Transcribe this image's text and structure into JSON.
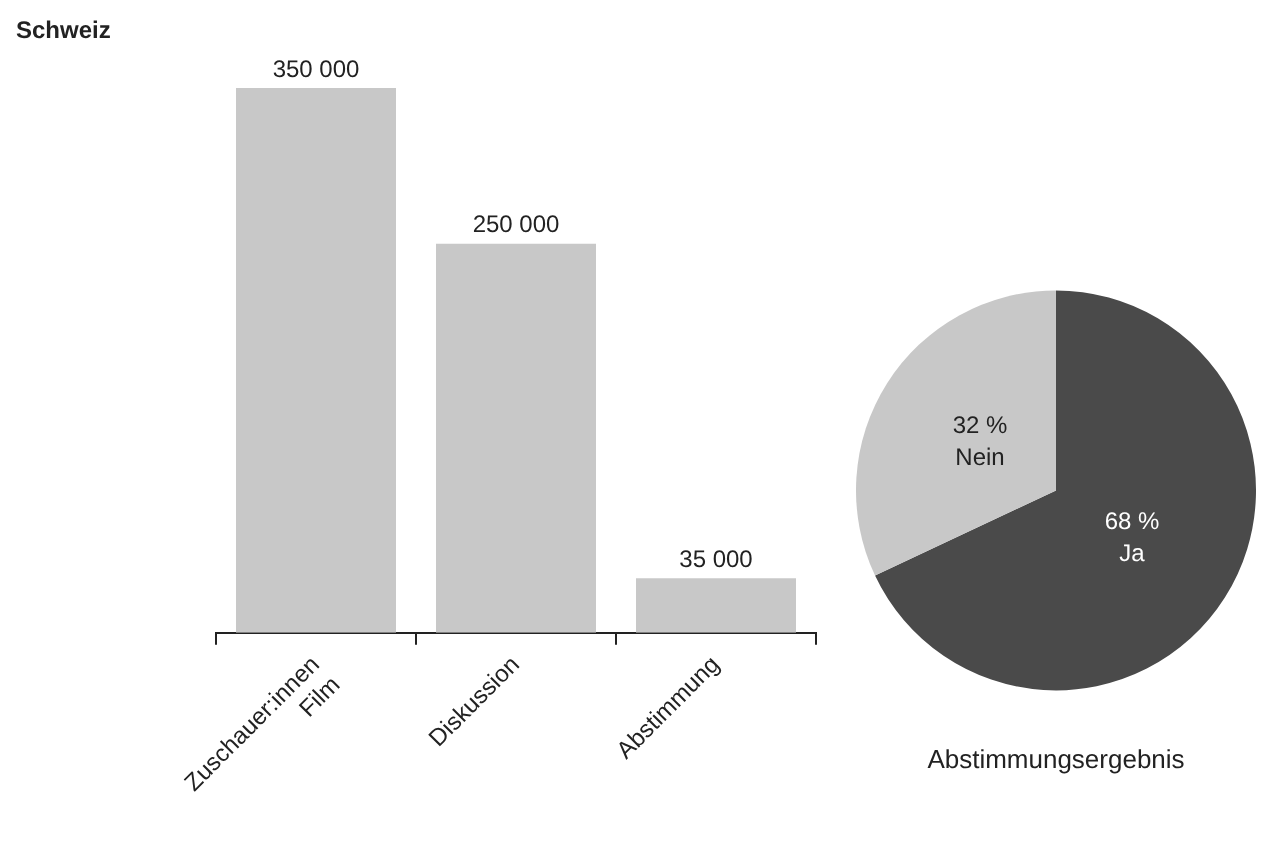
{
  "chart_data": [
    {
      "type": "bar",
      "title": "Schweiz",
      "categories": [
        "Zuschauer:innen Film",
        "Diskussion",
        "Abstimmung"
      ],
      "values": [
        350000,
        250000,
        35000
      ],
      "color": "#c8c8c8",
      "value_labels": [
        "350 000",
        "250 000",
        "35 000"
      ],
      "tick_labels": "x",
      "legend": false
    },
    {
      "type": "pie",
      "title": "Abstimmungsergebnis",
      "categories": [
        "Ja",
        "Nein"
      ],
      "values": [
        68,
        32
      ],
      "colors": [
        "#4a4a4a",
        "#c8c8c8"
      ],
      "value_labels": [
        "68 %",
        "32 %"
      ],
      "legend": false
    }
  ]
}
